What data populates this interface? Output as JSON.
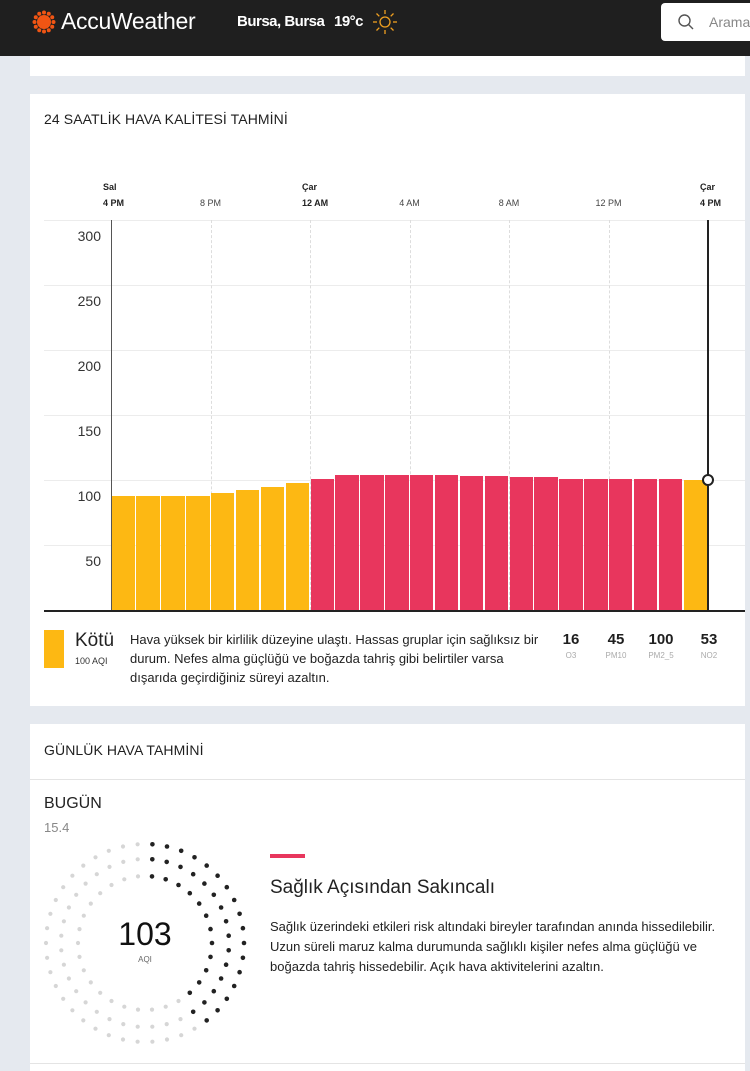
{
  "header": {
    "brand": "AccuWeather",
    "location": "Bursa, Bursa",
    "temperature": "19°c",
    "weather_icon": "sun-icon",
    "search_placeholder": "Arama"
  },
  "aq_forecast": {
    "title": "24 SAATLİK HAVA KALİTESİ TAHMİNİ",
    "category": "Kötü",
    "category_aqi": "100 AQI",
    "category_color": "#fdb813",
    "description": "Hava yüksek bir kirlilik düzeyine ulaştı. Hassas gruplar için sağlıksız bir durum. Nefes alma güçlüğü ve boğazda tahriş gibi belirtiler varsa dışarıda geçirdiğiniz süreyi azaltın.",
    "pollutants": [
      {
        "value": "16",
        "name": "O3"
      },
      {
        "value": "45",
        "name": "PM10"
      },
      {
        "value": "100",
        "name": "PM2_5"
      },
      {
        "value": "53",
        "name": "NO2"
      }
    ]
  },
  "chart_data": {
    "type": "bar",
    "title": "24 SAATLİK HAVA KALİTESİ TAHMİNİ",
    "ylabel": "AQI",
    "ylim": [
      0,
      300
    ],
    "yticks": [
      "300",
      "250",
      "200",
      "150",
      "100",
      "50"
    ],
    "xticks": [
      {
        "day": "Sal",
        "time": "4 PM",
        "bold": true,
        "index": 0
      },
      {
        "day": "",
        "time": "8 PM",
        "bold": false,
        "index": 4
      },
      {
        "day": "Çar",
        "time": "12 AM",
        "bold": true,
        "index": 8
      },
      {
        "day": "",
        "time": "4 AM",
        "bold": false,
        "index": 12
      },
      {
        "day": "",
        "time": "8 AM",
        "bold": false,
        "index": 16
      },
      {
        "day": "",
        "time": "12 PM",
        "bold": false,
        "index": 20
      },
      {
        "day": "Çar",
        "time": "4 PM",
        "bold": true,
        "index": 24
      }
    ],
    "values": [
      88,
      88,
      88,
      88,
      90,
      92,
      95,
      98,
      101,
      104,
      104,
      104,
      104,
      104,
      103,
      103,
      102,
      102,
      101,
      101,
      101,
      101,
      101,
      100
    ],
    "colors": {
      "moderate": "#fdb813",
      "unhealthy": "#e8365d"
    },
    "threshold": 100,
    "grid": true
  },
  "daily": {
    "title": "GÜNLÜK HAVA TAHMİNİ",
    "day": "BUGÜN",
    "date": "15.4",
    "aqi": "103",
    "aqi_label": "AQI",
    "ring_fraction": 0.41,
    "category_color": "#e8365d",
    "category": "Sağlık Açısından Sakıncalı",
    "description": "Sağlık üzerindeki etkileri risk altındaki bireyler tarafından anında hissedilebilir. Uzun süreli maruz kalma durumunda sağlıklı kişiler nefes alma güçlüğü ve boğazda tahriş hissedebilir. Açık hava aktivitelerini azaltın."
  }
}
